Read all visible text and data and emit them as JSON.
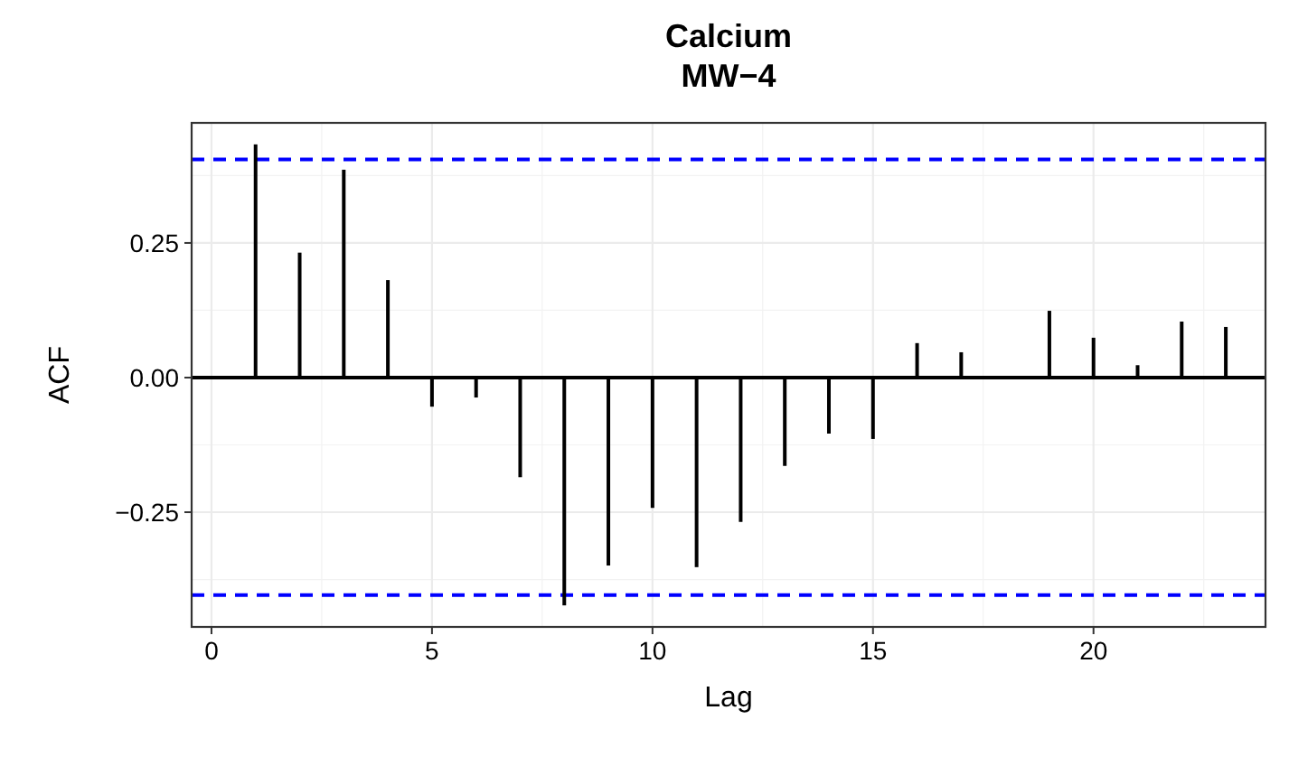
{
  "chart_data": {
    "type": "bar",
    "title": "Calcium",
    "subtitle": "MW−4",
    "xlabel": "Lag",
    "ylabel": "ACF",
    "x": [
      1,
      2,
      3,
      4,
      5,
      6,
      7,
      8,
      9,
      10,
      11,
      12,
      13,
      14,
      15,
      16,
      17,
      18,
      19,
      20,
      21,
      22,
      23
    ],
    "series": [
      {
        "color": "#000000",
        "values": [
          0.433,
          0.232,
          0.386,
          0.181,
          -0.054,
          -0.037,
          -0.185,
          -0.423,
          -0.349,
          -0.242,
          -0.352,
          -0.268,
          -0.164,
          -0.104,
          -0.114,
          0.064,
          0.047,
          0.0,
          0.124,
          0.074,
          0.023,
          0.104,
          0.094
        ]
      }
    ],
    "xlim": [
      -0.45,
      23.9
    ],
    "xticks": [
      0,
      5,
      10,
      15,
      20
    ],
    "ylim": [
      -0.463,
      0.473
    ],
    "yticks": [
      {
        "value": -0.25,
        "label": "−0.25"
      },
      {
        "value": 0,
        "label": "0.00"
      },
      {
        "value": 0.25,
        "label": "0.25"
      }
    ],
    "ref_lines": [
      {
        "axis": "y",
        "value": 0,
        "color": "#000000",
        "line_style": "solid"
      },
      {
        "axis": "y",
        "value": 0.405,
        "color": "#0000ff",
        "line_style": "dashed"
      },
      {
        "axis": "y",
        "value": -0.404,
        "color": "#0000ff",
        "line_style": "dashed"
      }
    ],
    "grid": true
  }
}
